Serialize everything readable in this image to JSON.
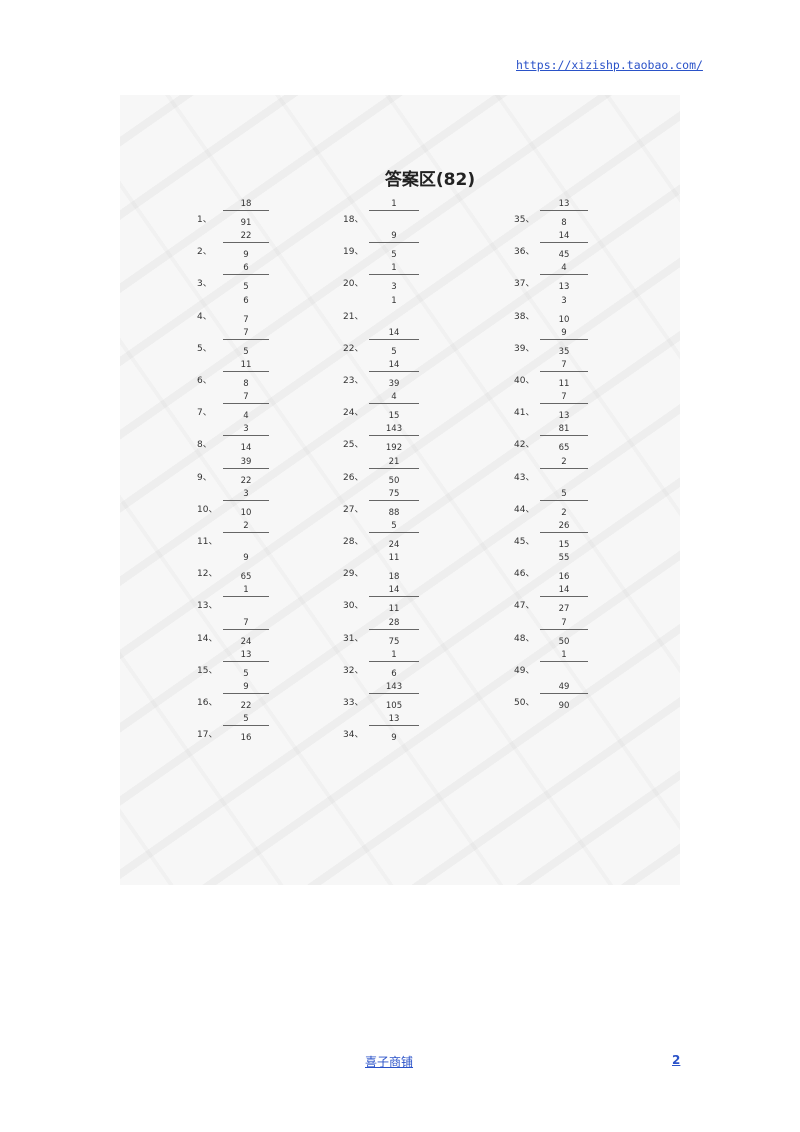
{
  "header": {
    "url": "https://xizishp.taobao.com/"
  },
  "watermark": "喜子的商铺",
  "title": "答案区(82)",
  "items": [
    {
      "n": "1、",
      "num": "18",
      "den": "91",
      "bar": true
    },
    {
      "n": "2、",
      "num": "22",
      "den": "9",
      "bar": true
    },
    {
      "n": "3、",
      "num": "6",
      "den": "5",
      "bar": true
    },
    {
      "n": "4、",
      "num": "6",
      "den": "7",
      "bar": false
    },
    {
      "n": "5、",
      "num": "7",
      "den": "5",
      "bar": true
    },
    {
      "n": "6、",
      "num": "11",
      "den": "8",
      "bar": true
    },
    {
      "n": "7、",
      "num": "7",
      "den": "4",
      "bar": true
    },
    {
      "n": "8、",
      "num": "3",
      "den": "14",
      "bar": true
    },
    {
      "n": "9、",
      "num": "39",
      "den": "22",
      "bar": true
    },
    {
      "n": "10、",
      "num": "3",
      "den": "10",
      "bar": true
    },
    {
      "n": "11、",
      "num": "2",
      "den": "",
      "bar": true
    },
    {
      "n": "12、",
      "num": "9",
      "den": "65",
      "bar": false
    },
    {
      "n": "13、",
      "num": "1",
      "den": "",
      "bar": true
    },
    {
      "n": "14、",
      "num": "7",
      "den": "24",
      "bar": true
    },
    {
      "n": "15、",
      "num": "13",
      "den": "5",
      "bar": true
    },
    {
      "n": "16、",
      "num": "9",
      "den": "22",
      "bar": true
    },
    {
      "n": "17、",
      "num": "5",
      "den": "16",
      "bar": true
    },
    {
      "n": "18、",
      "num": "1",
      "den": "",
      "bar": true
    },
    {
      "n": "19、",
      "num": "9",
      "den": "5",
      "bar": true
    },
    {
      "n": "20、",
      "num": "1",
      "den": "3",
      "bar": true
    },
    {
      "n": "21、",
      "num": "1",
      "den": "",
      "bar": false
    },
    {
      "n": "22、",
      "num": "14",
      "den": "5",
      "bar": true
    },
    {
      "n": "23、",
      "num": "14",
      "den": "39",
      "bar": true
    },
    {
      "n": "24、",
      "num": "4",
      "den": "15",
      "bar": true
    },
    {
      "n": "25、",
      "num": "143",
      "den": "192",
      "bar": true
    },
    {
      "n": "26、",
      "num": "21",
      "den": "50",
      "bar": true
    },
    {
      "n": "27、",
      "num": "75",
      "den": "88",
      "bar": true
    },
    {
      "n": "28、",
      "num": "5",
      "den": "24",
      "bar": true
    },
    {
      "n": "29、",
      "num": "11",
      "den": "18",
      "bar": false
    },
    {
      "n": "30、",
      "num": "14",
      "den": "11",
      "bar": true
    },
    {
      "n": "31、",
      "num": "28",
      "den": "75",
      "bar": true
    },
    {
      "n": "32、",
      "num": "1",
      "den": "6",
      "bar": true
    },
    {
      "n": "33、",
      "num": "143",
      "den": "105",
      "bar": true
    },
    {
      "n": "34、",
      "num": "13",
      "den": "9",
      "bar": true
    },
    {
      "n": "35、",
      "num": "13",
      "den": "8",
      "bar": true
    },
    {
      "n": "36、",
      "num": "14",
      "den": "45",
      "bar": true
    },
    {
      "n": "37、",
      "num": "4",
      "den": "13",
      "bar": true
    },
    {
      "n": "38、",
      "num": "3",
      "den": "10",
      "bar": false
    },
    {
      "n": "39、",
      "num": "9",
      "den": "35",
      "bar": true
    },
    {
      "n": "40、",
      "num": "7",
      "den": "11",
      "bar": true
    },
    {
      "n": "41、",
      "num": "7",
      "den": "13",
      "bar": true
    },
    {
      "n": "42、",
      "num": "81",
      "den": "65",
      "bar": true
    },
    {
      "n": "43、",
      "num": "2",
      "den": "",
      "bar": true
    },
    {
      "n": "44、",
      "num": "5",
      "den": "2",
      "bar": true
    },
    {
      "n": "45、",
      "num": "26",
      "den": "15",
      "bar": true
    },
    {
      "n": "46、",
      "num": "55",
      "den": "16",
      "bar": false
    },
    {
      "n": "47、",
      "num": "14",
      "den": "27",
      "bar": true
    },
    {
      "n": "48、",
      "num": "7",
      "den": "50",
      "bar": true
    },
    {
      "n": "49、",
      "num": "1",
      "den": "",
      "bar": true
    },
    {
      "n": "50、",
      "num": "49",
      "den": "90",
      "bar": true
    }
  ],
  "footer": {
    "shop": "喜子商铺",
    "page": "2"
  }
}
